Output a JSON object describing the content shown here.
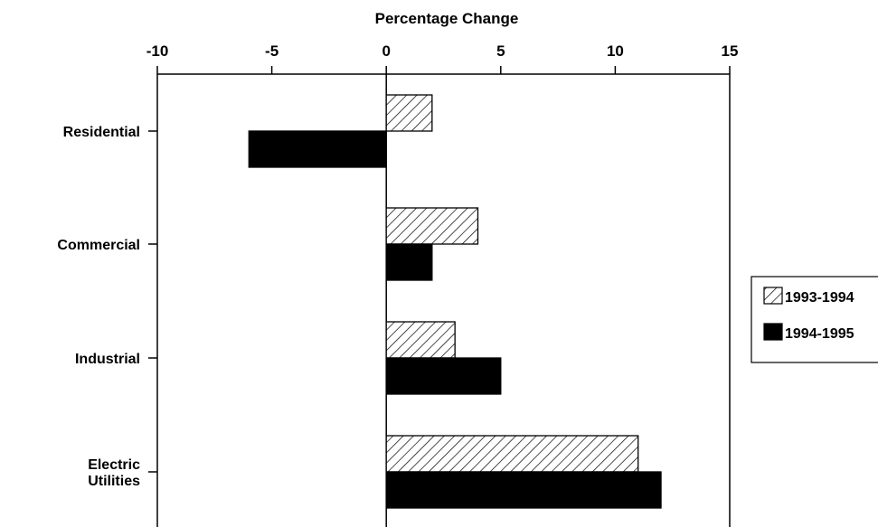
{
  "chart_data": {
    "type": "bar",
    "orientation": "horizontal",
    "title": "",
    "xlabel": "Percentage Change",
    "ylabel": "",
    "xlim": [
      -10,
      15
    ],
    "x_ticks": [
      "-10",
      "-5",
      "0",
      "5",
      "10",
      "15"
    ],
    "categories": [
      [
        "Residential"
      ],
      [
        "Commercial"
      ],
      [
        "Industrial"
      ],
      [
        "Electric",
        "Utilities"
      ]
    ],
    "series": [
      {
        "name": "1993-1994",
        "pattern": "hatched",
        "values": [
          2,
          4,
          3,
          11
        ]
      },
      {
        "name": "1994-1995",
        "pattern": "solid",
        "values": [
          -6,
          2,
          5,
          12
        ]
      }
    ],
    "legend_position": "right",
    "grid": false,
    "colors": {
      "bar_solid": "#000000",
      "hatch": "#000000",
      "background": "#ffffff"
    }
  }
}
